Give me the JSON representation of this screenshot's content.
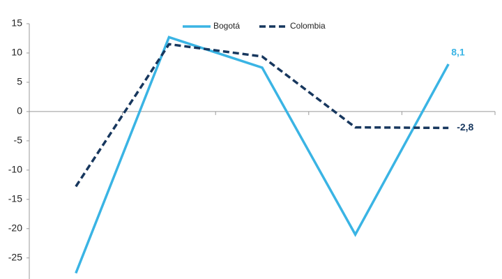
{
  "chart_data": {
    "type": "line",
    "categories": [
      null,
      null,
      null,
      null,
      null
    ],
    "series": [
      {
        "name": "Bogotá",
        "color": "#3ab4e4",
        "dash": false,
        "values": [
          -27.6,
          12.7,
          7.5,
          -21.0,
          8.1
        ],
        "value_labels": [
          null,
          null,
          null,
          null,
          "8,1"
        ]
      },
      {
        "name": "Colombia",
        "color": "#17375e",
        "dash": true,
        "values": [
          -12.8,
          11.5,
          9.4,
          -2.7,
          -2.8
        ],
        "value_labels": [
          null,
          null,
          null,
          null,
          "-2,8"
        ]
      }
    ],
    "ylim": [
      -28.6,
      15
    ],
    "yticks": [
      15,
      10,
      5,
      0,
      -5,
      -10,
      -15,
      -20,
      -25
    ],
    "grid": false
  }
}
